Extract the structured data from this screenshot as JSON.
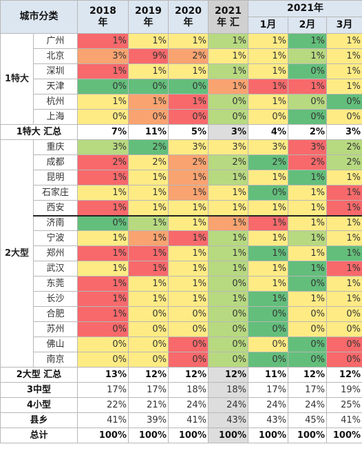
{
  "header": {
    "category_label": "城市分类",
    "year_2018": [
      "2018",
      "年"
    ],
    "year_2019": [
      "2019",
      "年"
    ],
    "year_2020": [
      "2020",
      "年"
    ],
    "year_2021": [
      "2021",
      "年 汇"
    ],
    "year_2021_months": "2021年",
    "months": [
      "1月",
      "2月",
      "3月"
    ]
  },
  "colors": {
    "red": "#f8696b",
    "orange": "#f9a370",
    "lightorange": "#fcc77c",
    "yellow": "#ffeb84",
    "lightgreen": "#b7d980",
    "green": "#63be7b",
    "grey": "#dddddd"
  },
  "groups": [
    {
      "name": "1特大",
      "rows": [
        {
          "city": "广州",
          "values": [
            "1%",
            "1%",
            "1%",
            "1%",
            "1%",
            "1%",
            "1%"
          ],
          "colors": [
            "red",
            "yellow",
            "yellow",
            "lightgreen",
            "yellow",
            "green",
            "yellow"
          ]
        },
        {
          "city": "北京",
          "values": [
            "3%",
            "9%",
            "2%",
            "1%",
            "1%",
            "1%",
            "1%"
          ],
          "colors": [
            "orange",
            "red",
            "orange",
            "yellow",
            "yellow",
            "lightgreen",
            "yellow"
          ]
        },
        {
          "city": "深圳",
          "values": [
            "1%",
            "1%",
            "1%",
            "1%",
            "1%",
            "0%",
            "1%"
          ],
          "colors": [
            "red",
            "yellow",
            "yellow",
            "lightgreen",
            "yellow",
            "green",
            "yellow"
          ]
        },
        {
          "city": "天津",
          "values": [
            "0%",
            "0%",
            "0%",
            "1%",
            "1%",
            "1%",
            "1%"
          ],
          "colors": [
            "green",
            "green",
            "green",
            "orange",
            "red",
            "red",
            "yellow"
          ]
        },
        {
          "city": "杭州",
          "values": [
            "1%",
            "1%",
            "1%",
            "0%",
            "1%",
            "0%",
            "0%"
          ],
          "colors": [
            "yellow",
            "orange",
            "red",
            "lightgreen",
            "yellow",
            "lightgreen",
            "green"
          ]
        },
        {
          "city": "上海",
          "values": [
            "0%",
            "0%",
            "0%",
            "0%",
            "0%",
            "0%",
            "0%"
          ],
          "colors": [
            "yellow",
            "orange",
            "red",
            "lightgreen",
            "yellow",
            "green",
            "yellow"
          ]
        }
      ],
      "total_label": "1特大 汇总",
      "total": [
        "7%",
        "11%",
        "5%",
        "3%",
        "4%",
        "2%",
        "3%"
      ]
    },
    {
      "name": "2大型",
      "rows": [
        {
          "city": "重庆",
          "values": [
            "3%",
            "2%",
            "3%",
            "3%",
            "3%",
            "3%",
            "2%"
          ],
          "colors": [
            "lightgreen",
            "green",
            "yellow",
            "yellow",
            "yellow",
            "red",
            "lightgreen"
          ]
        },
        {
          "city": "成都",
          "values": [
            "2%",
            "2%",
            "2%",
            "2%",
            "2%",
            "2%",
            "2%"
          ],
          "colors": [
            "red",
            "yellow",
            "orange",
            "lightgreen",
            "green",
            "red",
            "lightgreen"
          ]
        },
        {
          "city": "昆明",
          "values": [
            "1%",
            "1%",
            "1%",
            "1%",
            "1%",
            "1%",
            "1%"
          ],
          "colors": [
            "red",
            "yellow",
            "orange",
            "lightgreen",
            "yellow",
            "green",
            "yellow"
          ]
        },
        {
          "city": "石家庄",
          "values": [
            "1%",
            "1%",
            "1%",
            "1%",
            "0%",
            "1%",
            "1%"
          ],
          "colors": [
            "yellow",
            "yellow",
            "orange",
            "yellow",
            "green",
            "yellow",
            "red"
          ]
        },
        {
          "city": "西安",
          "values": [
            "1%",
            "1%",
            "1%",
            "1%",
            "1%",
            "1%",
            "1%"
          ],
          "colors": [
            "red",
            "yellow",
            "yellow",
            "yellow",
            "yellow",
            "yellow",
            "red"
          ]
        },
        {
          "city": "济南",
          "values": [
            "0%",
            "1%",
            "1%",
            "1%",
            "1%",
            "1%",
            "1%"
          ],
          "colors": [
            "green",
            "lightgreen",
            "yellow",
            "orange",
            "red",
            "yellow",
            "yellow"
          ]
        },
        {
          "city": "宁波",
          "values": [
            "1%",
            "1%",
            "1%",
            "1%",
            "1%",
            "1%",
            "1%"
          ],
          "colors": [
            "yellow",
            "orange",
            "red",
            "lightgreen",
            "yellow",
            "lightgreen",
            "yellow"
          ]
        },
        {
          "city": "郑州",
          "values": [
            "1%",
            "1%",
            "1%",
            "1%",
            "1%",
            "1%",
            "1%"
          ],
          "colors": [
            "red",
            "red",
            "yellow",
            "lightgreen",
            "green",
            "yellow",
            "green"
          ]
        },
        {
          "city": "武汉",
          "values": [
            "1%",
            "1%",
            "1%",
            "1%",
            "1%",
            "1%",
            "1%"
          ],
          "colors": [
            "yellow",
            "red",
            "yellow",
            "lightgreen",
            "yellow",
            "green",
            "red"
          ]
        },
        {
          "city": "东莞",
          "values": [
            "1%",
            "1%",
            "1%",
            "0%",
            "1%",
            "0%",
            "1%"
          ],
          "colors": [
            "red",
            "yellow",
            "yellow",
            "lightgreen",
            "yellow",
            "green",
            "yellow"
          ]
        },
        {
          "city": "长沙",
          "values": [
            "1%",
            "1%",
            "1%",
            "1%",
            "1%",
            "1%",
            "1%"
          ],
          "colors": [
            "red",
            "yellow",
            "yellow",
            "lightgreen",
            "green",
            "yellow",
            "yellow"
          ]
        },
        {
          "city": "合肥",
          "values": [
            "1%",
            "0%",
            "0%",
            "0%",
            "0%",
            "0%",
            "0%"
          ],
          "colors": [
            "red",
            "yellow",
            "yellow",
            "lightgreen",
            "green",
            "yellow",
            "yellow"
          ]
        },
        {
          "city": "苏州",
          "values": [
            "0%",
            "0%",
            "0%",
            "0%",
            "0%",
            "0%",
            "0%"
          ],
          "colors": [
            "red",
            "yellow",
            "yellow",
            "lightgreen",
            "green",
            "yellow",
            "yellow"
          ]
        },
        {
          "city": "佛山",
          "values": [
            "0%",
            "0%",
            "0%",
            "0%",
            "0%",
            "0%",
            "0%"
          ],
          "colors": [
            "yellow",
            "yellow",
            "red",
            "lightgreen",
            "yellow",
            "green",
            "red"
          ]
        },
        {
          "city": "南京",
          "values": [
            "0%",
            "0%",
            "0%",
            "0%",
            "0%",
            "0%",
            "0%"
          ],
          "colors": [
            "yellow",
            "yellow",
            "red",
            "lightgreen",
            "green",
            "green",
            "red"
          ]
        }
      ],
      "total_label": "2大型 汇总",
      "total": [
        "13%",
        "12%",
        "12%",
        "12%",
        "11%",
        "12%",
        "12%"
      ]
    }
  ],
  "other_rows": [
    {
      "label": "3中型",
      "values": [
        "17%",
        "17%",
        "18%",
        "18%",
        "17%",
        "17%",
        "19%"
      ]
    },
    {
      "label": "4小型",
      "values": [
        "22%",
        "21%",
        "24%",
        "24%",
        "24%",
        "24%",
        "25%"
      ]
    },
    {
      "label": "县乡",
      "values": [
        "41%",
        "39%",
        "41%",
        "43%",
        "43%",
        "45%",
        "41%"
      ]
    }
  ],
  "grand_total": {
    "label": "总计",
    "values": [
      "100%",
      "100%",
      "100%",
      "100%",
      "100%",
      "100%",
      "100%"
    ]
  }
}
